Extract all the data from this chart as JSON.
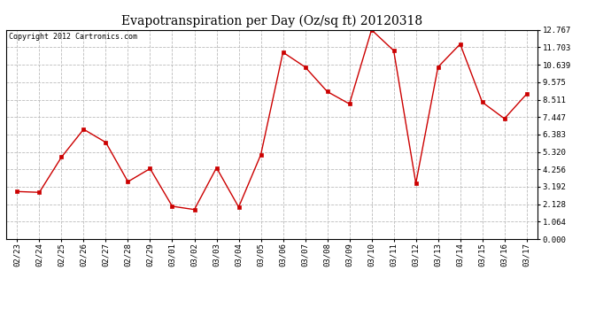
{
  "title": "Evapotranspiration per Day (Oz/sq ft) 20120318",
  "copyright": "Copyright 2012 Cartronics.com",
  "x_labels": [
    "02/23",
    "02/24",
    "02/25",
    "02/26",
    "02/27",
    "02/28",
    "02/29",
    "03/01",
    "03/02",
    "03/03",
    "03/04",
    "03/05",
    "03/06",
    "03/07",
    "03/08",
    "03/09",
    "03/10",
    "03/11",
    "03/12",
    "03/13",
    "03/14",
    "03/15",
    "03/16",
    "03/17"
  ],
  "y_values": [
    2.9,
    2.85,
    5.0,
    6.7,
    5.9,
    3.5,
    4.3,
    2.0,
    1.8,
    4.35,
    1.95,
    5.15,
    11.4,
    10.5,
    9.0,
    8.25,
    12.767,
    11.5,
    3.4,
    10.5,
    11.9,
    8.35,
    7.35,
    8.85
  ],
  "y_ticks": [
    0.0,
    1.064,
    2.128,
    3.192,
    4.256,
    5.32,
    6.383,
    7.447,
    8.511,
    9.575,
    10.639,
    11.703,
    12.767
  ],
  "line_color": "#cc0000",
  "marker": "s",
  "marker_size": 2.5,
  "background_color": "#ffffff",
  "plot_bg_color": "#ffffff",
  "grid_color": "#bbbbbb",
  "title_fontsize": 10,
  "copyright_fontsize": 6,
  "tick_fontsize": 6.5
}
